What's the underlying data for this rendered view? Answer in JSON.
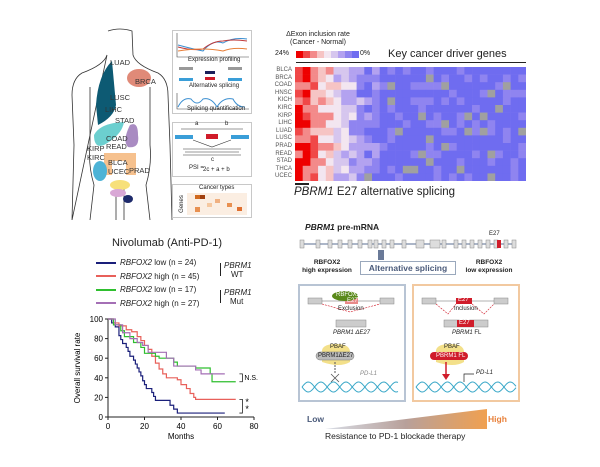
{
  "body_map": {
    "organs": [
      {
        "label": "LUAD",
        "color": "#0d5a73"
      },
      {
        "label": "BRCA",
        "color": "#e08a78"
      },
      {
        "label": "LUSC",
        "color": "#0d5a73"
      },
      {
        "label": "LIHC",
        "color": "#6ccfcf"
      },
      {
        "label": "STAD",
        "color": "#a98bc2"
      },
      {
        "label": "COAD",
        "color": "#f5b67a"
      },
      {
        "label": "READ",
        "color": "#f5b67a"
      },
      {
        "label": "KIRP",
        "color": "#4db3d6"
      },
      {
        "label": "KIRC",
        "color": "#4db3d6"
      },
      {
        "label": "BLCA",
        "color": "#f7e07a"
      },
      {
        "label": "UCEC",
        "color": "#d9a8d6"
      },
      {
        "label": "PRAD",
        "color": "#1e2a6b"
      }
    ]
  },
  "pipeline": {
    "step1": "Expression profiling",
    "step2": "Alternative splicing",
    "step3": "Splicing quantification",
    "psi_a": "a",
    "psi_b": "b",
    "psi_label": "PSI =",
    "psi_num": "c",
    "psi_den": "2c + a + b",
    "cancer_types": "Cancer types",
    "genes": "Genes"
  },
  "heatmap": {
    "legend_title_1": "ΔExon inclusion rate",
    "legend_title_2": "(Cancer - Normal)",
    "legend_max": "24%",
    "legend_min": "0%",
    "colors": [
      "#ee0000",
      "#f04848",
      "#f38a8a",
      "#f6c4c4",
      "#f3e6f0",
      "#d6c6ee",
      "#b3a2f0",
      "#8f84f0",
      "#6f6cf0"
    ],
    "missing_color": "#a0a0a0",
    "header": "Key cancer driver genes",
    "rows": [
      "BLCA",
      "BRCA",
      "COAD",
      "HNSC",
      "KICH",
      "KIRC",
      "KIRP",
      "LIHC",
      "LUAD",
      "LUSC",
      "PRAD",
      "READ",
      "STAD",
      "THCA",
      "UCEC"
    ],
    "caption_gene": "PBRM1",
    "caption_rest": " E27 alternative splicing"
  },
  "km": {
    "group_wt": "PBRM1",
    "group_wt_2": "WT",
    "group_mut": "PBRM1",
    "group_mut_2": "Mut",
    "ns": "N.S.",
    "sig": "**"
  },
  "chart_data": {
    "type": "line",
    "title": "Nivolumab (Anti-PD-1)",
    "xlabel": "Months",
    "ylabel": "Overall survival rate",
    "xlim": [
      0,
      80
    ],
    "ylim": [
      0,
      100
    ],
    "xticks": [
      "0",
      "20",
      "40",
      "60",
      "80"
    ],
    "yticks": [
      "0",
      "20",
      "40",
      "60",
      "80",
      "100"
    ],
    "grid": false,
    "legend_placement": "top",
    "series": [
      {
        "name": "RBFOX2 low (n = 24)",
        "gene": "RBFOX2",
        "text": " low (n = 24)",
        "color": "#1a1f7a",
        "points": [
          [
            0,
            100
          ],
          [
            2,
            96
          ],
          [
            4,
            92
          ],
          [
            6,
            83
          ],
          [
            7,
            79
          ],
          [
            8,
            75
          ],
          [
            10,
            71
          ],
          [
            11,
            67
          ],
          [
            12,
            62
          ],
          [
            14,
            58
          ],
          [
            15,
            54
          ],
          [
            16,
            50
          ],
          [
            17,
            46
          ],
          [
            18,
            42
          ],
          [
            19,
            37
          ],
          [
            20,
            33
          ],
          [
            21,
            29
          ],
          [
            24,
            25
          ],
          [
            25,
            21
          ],
          [
            26,
            17
          ],
          [
            34,
            12
          ],
          [
            36,
            8
          ],
          [
            38,
            4
          ],
          [
            64,
            4
          ]
        ]
      },
      {
        "name": "RBFOX2 high (n = 45)",
        "gene": "RBFOX2",
        "text": " high (n = 45)",
        "color": "#e8605a",
        "points": [
          [
            0,
            100
          ],
          [
            3,
            96
          ],
          [
            6,
            93
          ],
          [
            10,
            89
          ],
          [
            13,
            87
          ],
          [
            16,
            82
          ],
          [
            18,
            78
          ],
          [
            20,
            73
          ],
          [
            22,
            69
          ],
          [
            24,
            62
          ],
          [
            26,
            55
          ],
          [
            28,
            49
          ],
          [
            30,
            44
          ],
          [
            32,
            40
          ],
          [
            38,
            38
          ],
          [
            40,
            33
          ],
          [
            43,
            29
          ],
          [
            45,
            24
          ],
          [
            47,
            20
          ],
          [
            48,
            18
          ],
          [
            70,
            18
          ]
        ]
      },
      {
        "name": "RBFOX2 low (n = 17)",
        "gene": "RBFOX2",
        "text": " low (n = 17)",
        "color": "#2fbf2f",
        "points": [
          [
            0,
            100
          ],
          [
            3,
            94
          ],
          [
            7,
            88
          ],
          [
            9,
            82
          ],
          [
            14,
            76
          ],
          [
            18,
            71
          ],
          [
            20,
            65
          ],
          [
            26,
            62
          ],
          [
            28,
            60
          ],
          [
            36,
            56
          ],
          [
            38,
            52
          ],
          [
            48,
            50
          ],
          [
            56,
            44
          ],
          [
            57,
            36
          ],
          [
            70,
            36
          ]
        ]
      },
      {
        "name": "RBFOX2 high (n = 27)",
        "gene": "RBFOX2",
        "text": " high (n = 27)",
        "color": "#a46fb5",
        "points": [
          [
            0,
            100
          ],
          [
            4,
            94
          ],
          [
            8,
            86
          ],
          [
            12,
            80
          ],
          [
            16,
            76
          ],
          [
            19,
            73
          ],
          [
            22,
            66
          ],
          [
            32,
            60
          ],
          [
            36,
            52
          ],
          [
            48,
            48
          ],
          [
            51,
            44
          ],
          [
            64,
            44
          ]
        ]
      }
    ]
  },
  "mechanism": {
    "premrna_gene": "PBRM1",
    "premrna_rest": " pre-mRNA",
    "e27": "E27",
    "alt_splicing": "Alternative splicing",
    "left_head_1": "RBFOX2",
    "left_head_2": "high expression",
    "right_head_1": "RBFOX2",
    "right_head_2": "low expression",
    "rbfox2": "RBFOX2",
    "exclusion": "Exclusion",
    "inclusion": "Inclusion",
    "left_product": "PBRM1 ΔE27",
    "right_product_gene": "PBRM1",
    "right_product_rest": " FL",
    "pbaf": "PBAF",
    "left_protein": "PBRM1ΔE27",
    "right_protein": "PBRM1 FL",
    "pdl1": "PD-L1",
    "low": "Low",
    "high": "High",
    "resistance": "Resistance to PD-1 blockade therapy",
    "colors": {
      "left_box": "#b8c4d4",
      "right_box": "#f2c9a0",
      "exon_red": "#d01c2a",
      "low_text": "#4a5a7a",
      "high_text": "#e8803a"
    }
  }
}
